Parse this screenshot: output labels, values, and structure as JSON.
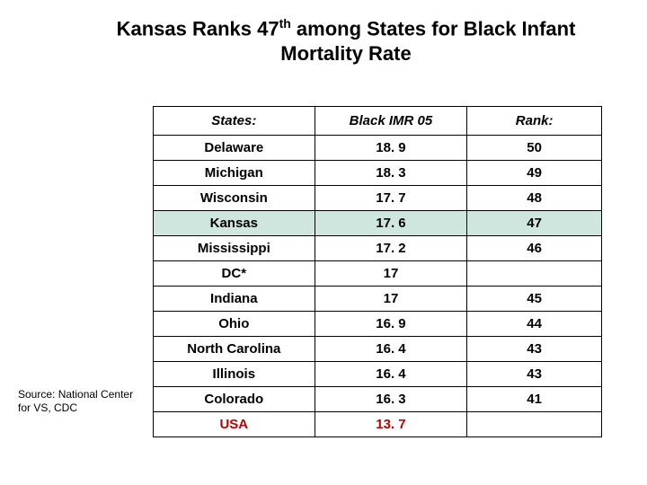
{
  "title": {
    "prefix": "Kansas Ranks 47",
    "super": "th",
    "suffix": " among States for Black Infant Mortality Rate"
  },
  "table": {
    "columns": [
      "States:",
      "Black IMR 05",
      "Rank:"
    ],
    "col_widths_pct": [
      36,
      34,
      30
    ],
    "header_fontstyle": "italic bold",
    "cell_fontweight": "bold",
    "border_color": "#000000",
    "background_color": "#ffffff",
    "highlight_color": "#cfe6df",
    "usa_text_color": "#c00000",
    "rows": [
      {
        "cells": [
          "Delaware",
          "18. 9",
          "50"
        ]
      },
      {
        "cells": [
          "Michigan",
          "18. 3",
          "49"
        ]
      },
      {
        "cells": [
          "Wisconsin",
          "17. 7",
          "48"
        ]
      },
      {
        "cells": [
          "Kansas",
          "17. 6",
          "47"
        ],
        "highlight": true
      },
      {
        "cells": [
          "Mississippi",
          "17. 2",
          "46"
        ]
      },
      {
        "cells": [
          "DC*",
          "17",
          ""
        ]
      },
      {
        "cells": [
          "Indiana",
          "17",
          "45"
        ]
      },
      {
        "cells": [
          "Ohio",
          "16. 9",
          "44"
        ]
      },
      {
        "cells": [
          "North Carolina",
          "16. 4",
          "43"
        ]
      },
      {
        "cells": [
          "Illinois",
          "16. 4",
          "43"
        ]
      },
      {
        "cells": [
          "Colorado",
          "16. 3",
          "41"
        ]
      },
      {
        "cells": [
          "USA",
          "13. 7",
          ""
        ],
        "usa": true
      }
    ]
  },
  "source": "Source:  National Center for VS, CDC"
}
